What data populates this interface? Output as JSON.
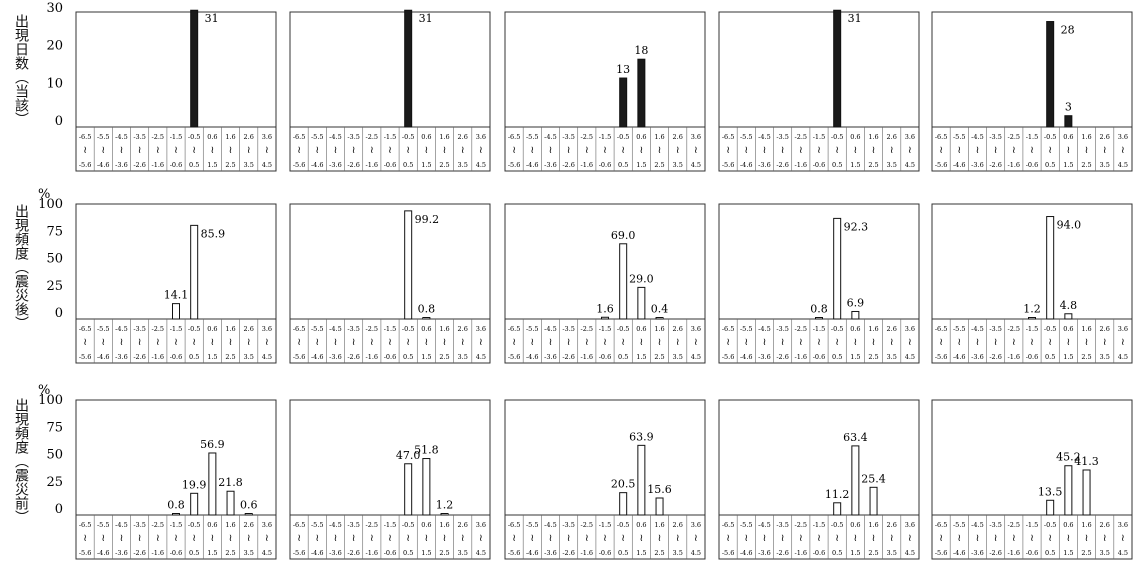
{
  "rows": [
    {
      "row_label": "出現日数（当該）",
      "unit": "",
      "y_ticks": [
        "30",
        "20",
        "10",
        "0"
      ],
      "bar_fill": "#1a1a1a"
    },
    {
      "row_label": "出現頻度（震災後）",
      "unit": "%",
      "y_ticks": [
        "100",
        "75",
        "50",
        "25",
        "0"
      ],
      "bar_fill": "#ffffff"
    },
    {
      "row_label": "出現頻度（震災前）",
      "unit": "%",
      "y_ticks": [
        "100",
        "75",
        "50",
        "25",
        "0"
      ],
      "bar_fill": "#ffffff"
    }
  ],
  "x_bins": [
    {
      "top": "-6.5",
      "bottom": "-5.6"
    },
    {
      "top": "-5.5",
      "bottom": "-4.6"
    },
    {
      "top": "-4.5",
      "bottom": "-3.6"
    },
    {
      "top": "-3.5",
      "bottom": "-2.6"
    },
    {
      "top": "-2.5",
      "bottom": "-1.6"
    },
    {
      "top": "-1.5",
      "bottom": "-0.6"
    },
    {
      "top": "-0.5",
      "bottom": "0.5"
    },
    {
      "top": "0.6",
      "bottom": "1.5"
    },
    {
      "top": "1.6",
      "bottom": "2.5"
    },
    {
      "top": "2.6",
      "bottom": "3.5"
    },
    {
      "top": "3.6",
      "bottom": "4.5"
    }
  ],
  "range_mark": "≀",
  "chart_data": [
    {
      "type": "bar",
      "row": 0,
      "col": 0,
      "ylim": [
        0,
        30
      ],
      "values": [
        0,
        0,
        0,
        0,
        0,
        0,
        31,
        0,
        0,
        0,
        0
      ],
      "labels": [
        "",
        "",
        "",
        "",
        "",
        "",
        "31",
        "",
        "",
        "",
        ""
      ]
    },
    {
      "type": "bar",
      "row": 0,
      "col": 1,
      "ylim": [
        0,
        30
      ],
      "values": [
        0,
        0,
        0,
        0,
        0,
        0,
        31,
        0,
        0,
        0,
        0
      ],
      "labels": [
        "",
        "",
        "",
        "",
        "",
        "",
        "31",
        "",
        "",
        "",
        ""
      ]
    },
    {
      "type": "bar",
      "row": 0,
      "col": 2,
      "ylim": [
        0,
        30
      ],
      "values": [
        0,
        0,
        0,
        0,
        0,
        0,
        13,
        18,
        0,
        0,
        0
      ],
      "labels": [
        "",
        "",
        "",
        "",
        "",
        "",
        "13",
        "18",
        "",
        "",
        ""
      ]
    },
    {
      "type": "bar",
      "row": 0,
      "col": 3,
      "ylim": [
        0,
        30
      ],
      "values": [
        0,
        0,
        0,
        0,
        0,
        0,
        31,
        0,
        0,
        0,
        0
      ],
      "labels": [
        "",
        "",
        "",
        "",
        "",
        "",
        "31",
        "",
        "",
        "",
        ""
      ]
    },
    {
      "type": "bar",
      "row": 0,
      "col": 4,
      "ylim": [
        0,
        30
      ],
      "values": [
        0,
        0,
        0,
        0,
        0,
        0,
        28,
        3,
        0,
        0,
        0
      ],
      "labels": [
        "",
        "",
        "",
        "",
        "",
        "",
        "28",
        "3",
        "",
        "",
        ""
      ]
    },
    {
      "type": "bar",
      "row": 1,
      "col": 0,
      "ylim": [
        0,
        100
      ],
      "values": [
        0,
        0,
        0,
        0,
        0,
        14.1,
        85.9,
        0,
        0,
        0,
        0
      ],
      "labels": [
        "",
        "",
        "",
        "",
        "",
        "14.1",
        "85.9",
        "",
        "",
        "",
        ""
      ]
    },
    {
      "type": "bar",
      "row": 1,
      "col": 1,
      "ylim": [
        0,
        100
      ],
      "values": [
        0,
        0,
        0,
        0,
        0,
        0,
        99.2,
        0.8,
        0,
        0,
        0
      ],
      "labels": [
        "",
        "",
        "",
        "",
        "",
        "",
        "99.2",
        "0.8",
        "",
        "",
        ""
      ]
    },
    {
      "type": "bar",
      "row": 1,
      "col": 2,
      "ylim": [
        0,
        100
      ],
      "values": [
        0,
        0,
        0,
        0,
        0,
        1.6,
        69.0,
        29.0,
        0.4,
        0,
        0
      ],
      "labels": [
        "",
        "",
        "",
        "",
        "",
        "1.6",
        "69.0",
        "29.0",
        "0.4",
        "",
        ""
      ]
    },
    {
      "type": "bar",
      "row": 1,
      "col": 3,
      "ylim": [
        0,
        100
      ],
      "values": [
        0,
        0,
        0,
        0,
        0,
        0.8,
        92.3,
        6.9,
        0,
        0,
        0
      ],
      "labels": [
        "",
        "",
        "",
        "",
        "",
        "0.8",
        "92.3",
        "6.9",
        "",
        "",
        ""
      ]
    },
    {
      "type": "bar",
      "row": 1,
      "col": 4,
      "ylim": [
        0,
        100
      ],
      "values": [
        0,
        0,
        0,
        0,
        0,
        1.2,
        94.0,
        4.8,
        0,
        0,
        0
      ],
      "labels": [
        "",
        "",
        "",
        "",
        "",
        "1.2",
        "94.0",
        "4.8",
        "",
        "",
        ""
      ]
    },
    {
      "type": "bar",
      "row": 2,
      "col": 0,
      "ylim": [
        0,
        100
      ],
      "values": [
        0,
        0,
        0,
        0,
        0,
        0.8,
        19.9,
        56.9,
        21.8,
        0.6,
        0
      ],
      "labels": [
        "",
        "",
        "",
        "",
        "",
        "0.8",
        "19.9",
        "56.9",
        "21.8",
        "0.6",
        ""
      ]
    },
    {
      "type": "bar",
      "row": 2,
      "col": 1,
      "ylim": [
        0,
        100
      ],
      "values": [
        0,
        0,
        0,
        0,
        0,
        0,
        47.0,
        51.8,
        1.2,
        0,
        0
      ],
      "labels": [
        "",
        "",
        "",
        "",
        "",
        "",
        "47.0",
        "51.8",
        "1.2",
        "",
        ""
      ]
    },
    {
      "type": "bar",
      "row": 2,
      "col": 2,
      "ylim": [
        0,
        100
      ],
      "values": [
        0,
        0,
        0,
        0,
        0,
        0,
        20.5,
        63.9,
        15.6,
        0,
        0
      ],
      "labels": [
        "",
        "",
        "",
        "",
        "",
        "",
        "20.5",
        "63.9",
        "15.6",
        "",
        ""
      ]
    },
    {
      "type": "bar",
      "row": 2,
      "col": 3,
      "ylim": [
        0,
        100
      ],
      "values": [
        0,
        0,
        0,
        0,
        0,
        0,
        11.2,
        63.4,
        25.4,
        0,
        0
      ],
      "labels": [
        "",
        "",
        "",
        "",
        "",
        "",
        "11.2",
        "63.4",
        "25.4",
        "",
        ""
      ]
    },
    {
      "type": "bar",
      "row": 2,
      "col": 4,
      "ylim": [
        0,
        100
      ],
      "values": [
        0,
        0,
        0,
        0,
        0,
        0,
        13.5,
        45.2,
        41.3,
        0,
        0
      ],
      "labels": [
        "",
        "",
        "",
        "",
        "",
        "",
        "13.5",
        "45.2",
        "41.3",
        "",
        ""
      ]
    }
  ]
}
